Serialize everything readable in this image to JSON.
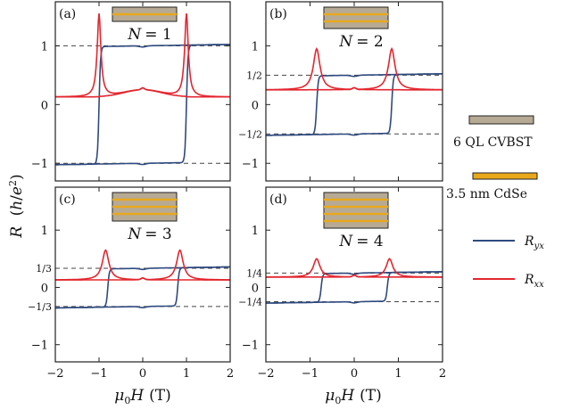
{
  "chart_data": [
    {
      "type": "line",
      "panel_label": "(a)",
      "title": "N = 1",
      "title_prefix": "N",
      "title_value": "= 1",
      "layers": 1,
      "xlim": [
        -2,
        2
      ],
      "ylim": [
        -1.3,
        1.75
      ],
      "quantized": 1,
      "x_ticks": [
        "−2",
        "−1",
        "0",
        "1",
        "2"
      ],
      "y_ticks": [
        "−1",
        "0",
        "1"
      ],
      "y_ticks_values": [
        -1,
        0,
        1
      ],
      "show_x_ticklabels": false,
      "series": [
        {
          "name": "Ryx",
          "sweep_up_coercive": 1.0,
          "sweep_down_coercive": -1.0
        },
        {
          "name": "Rxx",
          "background": 0.13,
          "peak_height": 1.55,
          "peak_x": [
            -1.0,
            1.0
          ],
          "center_bump": 0.25
        }
      ]
    },
    {
      "type": "line",
      "panel_label": "(b)",
      "title": "N = 2",
      "title_prefix": "N",
      "title_value": "= 2",
      "layers": 2,
      "xlim": [
        -2,
        2
      ],
      "ylim": [
        -1.3,
        1.75
      ],
      "quantized": 0.5,
      "x_ticks": [
        "−2",
        "−1",
        "0",
        "1",
        "2"
      ],
      "y_ticks": [
        "−1",
        "0",
        "1"
      ],
      "y_ticks_values": [
        -1,
        0,
        1
      ],
      "annotations": [
        "1/2",
        "−1/2"
      ],
      "show_x_ticklabels": false,
      "series": [
        {
          "name": "Ryx",
          "sweep_up_coercive": 0.85,
          "sweep_down_coercive": -0.85
        },
        {
          "name": "Rxx",
          "background": 0.25,
          "peak_height": 0.95,
          "peak_x": [
            -0.85,
            0.85
          ],
          "center_bump": 0.3
        }
      ]
    },
    {
      "type": "line",
      "panel_label": "(c)",
      "title": "N = 3",
      "title_prefix": "N",
      "title_value": "= 3",
      "layers": 3,
      "xlim": [
        -2,
        2
      ],
      "ylim": [
        -1.3,
        1.75
      ],
      "quantized": 0.3333,
      "x_ticks": [
        "−2",
        "−1",
        "0",
        "1",
        "2"
      ],
      "y_ticks": [
        "−1",
        "0",
        "1"
      ],
      "y_ticks_values": [
        -1,
        0,
        1
      ],
      "annotations": [
        "1/3",
        "−1/3"
      ],
      "show_x_ticklabels": true,
      "series": [
        {
          "name": "Ryx",
          "sweep_up_coercive": 0.8,
          "sweep_down_coercive": -0.8
        },
        {
          "name": "Rxx",
          "background": 0.13,
          "peak_height": 0.65,
          "peak_x": [
            -0.85,
            0.85
          ],
          "center_bump": 0.18
        }
      ]
    },
    {
      "type": "line",
      "panel_label": "(d)",
      "title": "N = 4",
      "title_prefix": "N",
      "title_value": "= 4",
      "layers": 4,
      "xlim": [
        -2,
        2
      ],
      "ylim": [
        -1.3,
        1.75
      ],
      "quantized": 0.25,
      "x_ticks": [
        "−2",
        "−1",
        "0",
        "1",
        "2"
      ],
      "y_ticks": [
        "−1",
        "0",
        "1"
      ],
      "y_ticks_values": [
        -1,
        0,
        1
      ],
      "annotations": [
        "1/4",
        "−1/4"
      ],
      "show_x_ticklabels": true,
      "series": [
        {
          "name": "Ryx",
          "sweep_up_coercive": 0.75,
          "sweep_down_coercive": -0.75
        },
        {
          "name": "Rxx",
          "background": 0.18,
          "peak_height": 0.5,
          "peak_x": [
            -0.85,
            0.8
          ],
          "center_bump": 0.22
        }
      ]
    }
  ],
  "axes": {
    "ylabel_main": "R",
    "ylabel_unit": "(h/e²)",
    "ylabel_h": "h",
    "ylabel_e": "e",
    "ylabel_2": "2",
    "xlabel_mu": "μ",
    "xlabel_0": "0",
    "xlabel_H": "H",
    "xlabel_unit": "(T)"
  },
  "legend": {
    "material_1": "6 QL CVBST",
    "material_2": "3.5 nm CdSe",
    "ryx_label_R": "R",
    "ryx_label_sub": "yx",
    "rxx_label_R": "R",
    "rxx_label_sub": "xx"
  },
  "colors": {
    "ryx": "#2f4a7f",
    "rxx": "#e3262f",
    "cvbst": "#b7aa94",
    "cdse": "#e9a81c",
    "frame": "#222222",
    "dash": "#444444"
  }
}
